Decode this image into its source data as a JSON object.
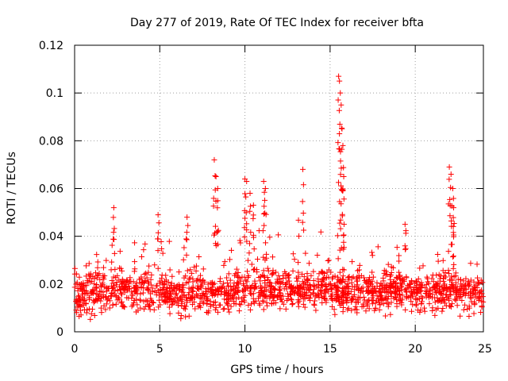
{
  "chart_data": {
    "type": "scatter",
    "title": "Day 277 of 2019, Rate Of TEC Index for receiver bfta",
    "xlabel": "GPS time / hours",
    "ylabel": "ROTI / TECUs",
    "xlim": [
      0,
      24
    ],
    "ylim": [
      0,
      0.12
    ],
    "xticks": [
      "0",
      "5",
      "10",
      "15",
      "20",
      "25"
    ],
    "yticks": [
      "0",
      "0.02",
      "0.04",
      "0.06",
      "0.08",
      "0.1",
      "0.12"
    ],
    "grid": true,
    "marker": "+",
    "series_color": "#ff0000",
    "baseline": {
      "x": [
        0,
        1,
        2,
        3,
        4,
        5,
        6,
        7,
        8,
        9,
        10,
        11,
        12,
        13,
        14,
        15,
        16,
        17,
        18,
        19,
        20,
        21,
        22,
        23,
        24
      ],
      "typical_roti": [
        0.015,
        0.016,
        0.017,
        0.017,
        0.017,
        0.016,
        0.016,
        0.016,
        0.015,
        0.016,
        0.017,
        0.017,
        0.017,
        0.018,
        0.018,
        0.017,
        0.016,
        0.016,
        0.016,
        0.017,
        0.016,
        0.016,
        0.017,
        0.016,
        0.015
      ],
      "upper_envelope": [
        0.035,
        0.04,
        0.045,
        0.045,
        0.045,
        0.047,
        0.045,
        0.038,
        0.04,
        0.045,
        0.055,
        0.045,
        0.045,
        0.05,
        0.048,
        0.05,
        0.045,
        0.04,
        0.035,
        0.04,
        0.035,
        0.035,
        0.04,
        0.035,
        0.03
      ]
    },
    "peaks": [
      {
        "x": [
          8.2,
          8.3,
          8.4
        ],
        "y": [
          0.072,
          0.065,
          0.06
        ]
      },
      {
        "x": [
          10.0,
          10.1,
          10.3,
          10.5
        ],
        "y": [
          0.064,
          0.063,
          0.058,
          0.053
        ]
      },
      {
        "x": [
          11.1,
          11.2
        ],
        "y": [
          0.063,
          0.06
        ]
      },
      {
        "x": [
          13.4
        ],
        "y": [
          0.068
        ]
      },
      {
        "x": [
          15.5,
          15.55,
          15.6,
          15.65,
          15.7,
          15.75,
          15.8
        ],
        "y": [
          0.107,
          0.105,
          0.1,
          0.095,
          0.085,
          0.078,
          0.065
        ]
      },
      {
        "x": [
          22.0,
          22.1,
          22.2,
          22.25
        ],
        "y": [
          0.069,
          0.066,
          0.06,
          0.052
        ]
      },
      {
        "x": [
          2.3,
          4.9,
          6.6,
          19.4
        ],
        "y": [
          0.052,
          0.049,
          0.048,
          0.045
        ]
      }
    ]
  }
}
